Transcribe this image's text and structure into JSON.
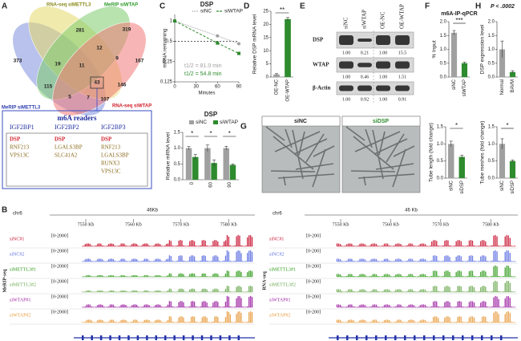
{
  "panel_labels": [
    "A",
    "B",
    "C",
    "D",
    "E",
    "F",
    "G",
    "H"
  ],
  "venn": {
    "sets": [
      {
        "name": "RNA-seq siMETTL3",
        "color": "#e6d96a"
      },
      {
        "name": "MeRIP siWTAP",
        "color": "#7dcc6e"
      },
      {
        "name": "MeRIP siMETTL3",
        "color": "#7d8fdc"
      },
      {
        "name": "RNA-seq siWTAP",
        "color": "#f07a78"
      }
    ],
    "counts": [
      281,
      319,
      373,
      12,
      167,
      19,
      9,
      11,
      115,
      43,
      146,
      5,
      7,
      107
    ]
  },
  "readers": {
    "title": "m6A readers",
    "groups": [
      {
        "name": "IGF2BP1",
        "genes": [
          "DSP",
          "RNF213",
          "VPS13C"
        ]
      },
      {
        "name": "IGF2BP2",
        "genes": [
          "DSP",
          "LGALS3BP",
          "SLC41A2"
        ]
      },
      {
        "name": "IGF2BP3",
        "genes": [
          "DSP",
          "RNF213",
          "LGALS3BP",
          "RUNX3",
          "VPS13C"
        ]
      }
    ]
  },
  "blot": {
    "lanes": [
      "siNC",
      "siWTAP",
      "OE-NC",
      "OE-WTAP"
    ],
    "rows": [
      {
        "name": "DSP",
        "values": [
          "1.00",
          "0.21",
          "1.00",
          "15.5"
        ]
      },
      {
        "name": "WTAP",
        "values": [
          "1.00",
          "0.46",
          "1.00",
          "1.51"
        ]
      },
      {
        "name": "β-Actin",
        "values": [
          "1.00",
          "0.92",
          "1.00",
          "0.91"
        ]
      }
    ]
  },
  "images": {
    "labels": [
      "siNC",
      "siDSP"
    ]
  },
  "tracks": [
    {
      "chrom": "chr6",
      "span": "46Kb",
      "ticks": [
        "7550 Kb",
        "7560 Kb",
        "7570 Kb",
        "7580 Kb"
      ],
      "side_label": "MeRIP-seq",
      "rows": [
        {
          "name": "siNC#1",
          "range": "[0-2000]",
          "color": "#c8102e"
        },
        {
          "name": "siNC#2",
          "range": "[0-2000]",
          "color": "#5a6de0"
        },
        {
          "name": "siMETTL3#1",
          "range": "[0-2000]",
          "color": "#2f9a1a"
        },
        {
          "name": "siMETTL3#2",
          "range": "[0-2000]",
          "color": "#6aa84f"
        },
        {
          "name": "siWTAP#1",
          "range": "[0-2000]",
          "color": "#9b1fa0"
        },
        {
          "name": "siWTAP#2",
          "range": "[0-2000]",
          "color": "#e89a3c"
        }
      ]
    },
    {
      "chrom": "chr6",
      "span": "46 Kb",
      "ticks": [
        "7550 Kb",
        "7560 Kb",
        "7570 Kb",
        "7580 Kb"
      ],
      "side_label": "RNA-seq",
      "rows": [
        {
          "name": "siNC#1",
          "range": "[0-200]",
          "color": "#c8102e"
        },
        {
          "name": "siNC#2",
          "range": "[0-200]",
          "color": "#5a6de0"
        },
        {
          "name": "siMETTL3#1",
          "range": "[0-200]",
          "color": "#2f9a1a"
        },
        {
          "name": "siMETTL3#2",
          "range": "[0-200]",
          "color": "#6aa84f"
        },
        {
          "name": "siWTAP#1",
          "range": "[0-200]",
          "color": "#9b1fa0"
        },
        {
          "name": "siWTAP#2",
          "range": "[0-200]",
          "color": "#e89a3c"
        }
      ]
    }
  ],
  "chart_data": [
    {
      "type": "line",
      "title": "DSP",
      "ylabel": "mRNA remaining",
      "xlabel": "Minutes",
      "log_y": true,
      "x": [
        0,
        60,
        90
      ],
      "xlim": [
        0,
        90
      ],
      "xticks": [
        0,
        30,
        60,
        90
      ],
      "ylim": [
        0.125,
        1.25
      ],
      "yticks": [
        1,
        0.5,
        0.25,
        0.125
      ],
      "hline": 0.5,
      "series": [
        {
          "name": "siNC",
          "color": "#a0a0a0",
          "values": [
            1,
            0.6,
            0.46
          ]
        },
        {
          "name": "siWTAP",
          "color": "#2e8b2e",
          "values": [
            1,
            0.47,
            0.33
          ]
        }
      ],
      "annotations": [
        "t1/2 = 81.0 min",
        "t1/2 = 54.8 min"
      ]
    },
    {
      "type": "bar",
      "title": "DSP",
      "ylabel": "Relative mRNA level",
      "categories": [
        "0",
        "60",
        "90"
      ],
      "ylim": [
        0,
        1.5
      ],
      "yticks": [
        {
          "value": 0,
          "label": "0.0"
        },
        {
          "value": 0.5,
          "label": "0.5"
        },
        {
          "value": 1,
          "label": "1.0"
        },
        {
          "value": 1.5,
          "label": "1.5"
        }
      ],
      "series": [
        {
          "name": "siNC",
          "color": "#a0a0a0",
          "values": [
            1.0,
            1.0,
            1.0
          ],
          "errors": [
            0.05,
            0.1,
            0.06
          ]
        },
        {
          "name": "siWTAP",
          "color": "#2e8b2e",
          "values": [
            0.72,
            0.53,
            0.47
          ],
          "errors": [
            0.08,
            0.1,
            0.03
          ]
        }
      ],
      "significance": [
        "*",
        "*",
        "*"
      ]
    },
    {
      "type": "bar",
      "ylabel": "Relative DSP mRNA level",
      "categories": [
        "OE-NC",
        "OE-WTAP"
      ],
      "values": [
        1,
        22
      ],
      "errors": [
        0.3,
        0.6
      ],
      "colors": [
        "#a0a0a0",
        "#2e8b2e"
      ],
      "ylim": [
        0,
        25
      ],
      "yticks": [
        0,
        5,
        10,
        15,
        20,
        25
      ],
      "significance": [
        "**"
      ]
    },
    {
      "type": "bar",
      "title": "m6A-IP-qPCR",
      "ylabel": "% Input",
      "categories": [
        "siNC",
        "siWTAP"
      ],
      "values": [
        1.6,
        0.5
      ],
      "errors": [
        0.08,
        0.04
      ],
      "colors": [
        "#a0a0a0",
        "#2e8b2e"
      ],
      "ylim": [
        0,
        2
      ],
      "yticks": [
        {
          "value": 0,
          "label": "0.0"
        },
        {
          "value": 0.5,
          "label": "0.5"
        },
        {
          "value": 1,
          "label": "1.0"
        },
        {
          "value": 1.5,
          "label": "1.5"
        },
        {
          "value": 2,
          "label": "2.0"
        }
      ],
      "significance": [
        "***"
      ]
    },
    {
      "type": "bar",
      "title": "P < .0002",
      "ylabel": "DSP expression level",
      "categories": [
        "Normal",
        "BAVM"
      ],
      "values": [
        1.0,
        0.18
      ],
      "errors": [
        0.3,
        0.05
      ],
      "colors": [
        "#a0a0a0",
        "#2e8b2e"
      ],
      "ylim": [
        0,
        2
      ],
      "yticks": [
        {
          "value": 0,
          "label": "0.0"
        },
        {
          "value": 0.5,
          "label": "0.5"
        },
        {
          "value": 1,
          "label": "1.0"
        },
        {
          "value": 1.5,
          "label": "1.5"
        },
        {
          "value": 2,
          "label": "2.0"
        }
      ]
    },
    {
      "type": "bar",
      "ylabel": "Tube length (fold change)",
      "categories": [
        "siNC",
        "siDSP"
      ],
      "values": [
        1.0,
        0.62
      ],
      "errors": [
        0.08,
        0.05
      ],
      "colors": [
        "#a0a0a0",
        "#2e8b2e"
      ],
      "ylim": [
        0,
        1.5
      ],
      "yticks": [
        {
          "value": 0,
          "label": "0.0"
        },
        {
          "value": 0.5,
          "label": "0.5"
        },
        {
          "value": 1,
          "label": "1.0"
        },
        {
          "value": 1.5,
          "label": "1.5"
        }
      ],
      "significance": [
        "*"
      ]
    },
    {
      "type": "bar",
      "ylabel": "Tube meshes (fold change)",
      "categories": [
        "siNC",
        "siDSP"
      ],
      "values": [
        1.0,
        0.5
      ],
      "errors": [
        0.15,
        0.03
      ],
      "colors": [
        "#a0a0a0",
        "#2e8b2e"
      ],
      "ylim": [
        0,
        1.5
      ],
      "yticks": [
        {
          "value": 0,
          "label": "0.0"
        },
        {
          "value": 0.5,
          "label": "0.5"
        },
        {
          "value": 1,
          "label": "1.0"
        },
        {
          "value": 1.5,
          "label": "1.5"
        }
      ],
      "significance": [
        "*"
      ]
    }
  ]
}
